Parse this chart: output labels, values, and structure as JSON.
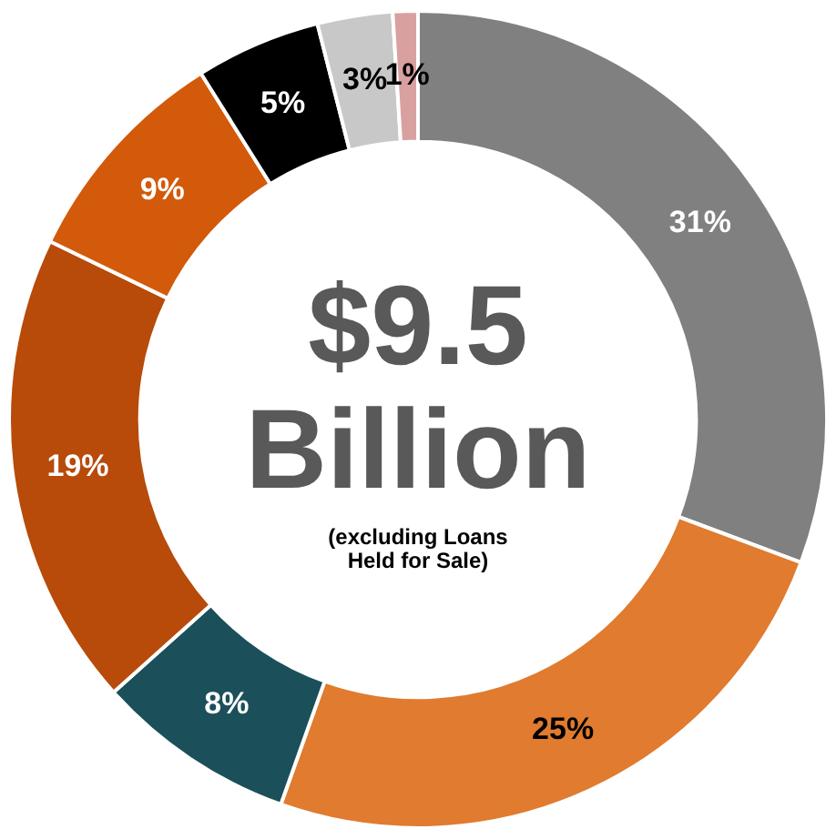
{
  "chart_data": {
    "type": "donut",
    "categories": [
      null,
      null,
      null,
      null,
      null,
      null,
      null,
      null
    ],
    "values": [
      31,
      25,
      8,
      19,
      9,
      5,
      3,
      1
    ],
    "colors": [
      "#808080",
      "#e07b2f",
      "#1b4f5a",
      "#b84a0a",
      "#d25a0a",
      "#000000",
      "#c8c8c8",
      "#d9a0a0"
    ],
    "value_labels": [
      "31%",
      "25%",
      "8%",
      "19%",
      "9%",
      "5%",
      "3%",
      "1%"
    ],
    "annotations": [
      "$9.5",
      "Billion",
      "(excluding Loans Held for Sale)"
    ],
    "legend": false
  }
}
